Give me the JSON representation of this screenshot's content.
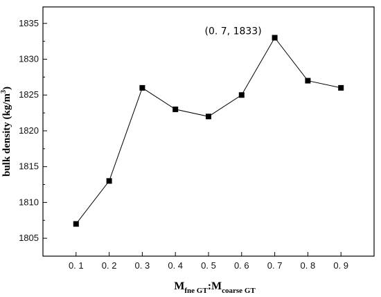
{
  "chart_data": {
    "type": "line",
    "title": "",
    "x": [
      0.1,
      0.2,
      0.3,
      0.4,
      0.5,
      0.6,
      0.7,
      0.8,
      0.9
    ],
    "x_tick_labels": [
      "0. 1",
      "0. 2",
      "0. 3",
      "0. 4",
      "0. 5",
      "0. 6",
      "0. 7",
      "0. 8",
      "0. 9"
    ],
    "series": [
      {
        "values": [
          1807,
          1813,
          1826,
          1823,
          1822,
          1825,
          1833,
          1827,
          1826
        ]
      }
    ],
    "xlabel": {
      "main1": "M",
      "sub1": "fne GT",
      "sep": ":",
      "main2": "M",
      "sub2": "coarse GT"
    },
    "ylabel": {
      "text": "bulk density (kg/m",
      "sup": "3",
      "end": ")"
    },
    "y_ticks": [
      1805,
      1810,
      1815,
      1820,
      1825,
      1830,
      1835
    ],
    "xlim": [
      0,
      1.0
    ],
    "ylim": [
      1802.5,
      1837.3
    ],
    "grid": false,
    "annotation": {
      "text": "(0. 7, 1833)",
      "x": 0.7,
      "y": 1833
    },
    "marker": "square",
    "line_color": "#000000"
  }
}
